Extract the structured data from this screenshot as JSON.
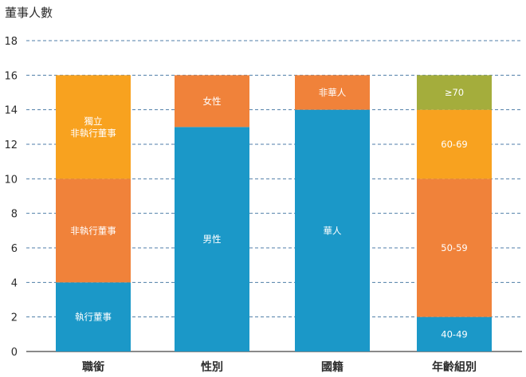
{
  "chart_data": {
    "type": "bar",
    "stacked": true,
    "ylabel": "董事人數",
    "ylim": [
      0,
      18
    ],
    "yticks": [
      0,
      2,
      4,
      6,
      8,
      10,
      12,
      14,
      16,
      18
    ],
    "grid": "horizontal-dashed",
    "categories": [
      "職銜",
      "性別",
      "國籍",
      "年齡組別"
    ],
    "stacks": [
      {
        "category": "職銜",
        "segments": [
          {
            "label": "執行董事",
            "value": 4,
            "color": "#1b98c8"
          },
          {
            "label": "非執行董事",
            "value": 6,
            "color": "#f0823a"
          },
          {
            "label": "獨立\n非執行董事",
            "value": 6,
            "color": "#f8a21f"
          }
        ]
      },
      {
        "category": "性別",
        "segments": [
          {
            "label": "男性",
            "value": 13,
            "color": "#1b98c8"
          },
          {
            "label": "女性",
            "value": 3,
            "color": "#f0823a"
          }
        ]
      },
      {
        "category": "國籍",
        "segments": [
          {
            "label": "華人",
            "value": 14,
            "color": "#1b98c8"
          },
          {
            "label": "非華人",
            "value": 2,
            "color": "#f0823a"
          }
        ]
      },
      {
        "category": "年齡組別",
        "segments": [
          {
            "label": "40-49",
            "value": 2,
            "color": "#1b98c8"
          },
          {
            "label": "50-59",
            "value": 8,
            "color": "#f0823a"
          },
          {
            "label": "60-69",
            "value": 4,
            "color": "#f8a21f"
          },
          {
            "label": "≥70",
            "value": 2,
            "color": "#a4ad3c"
          }
        ]
      }
    ]
  }
}
